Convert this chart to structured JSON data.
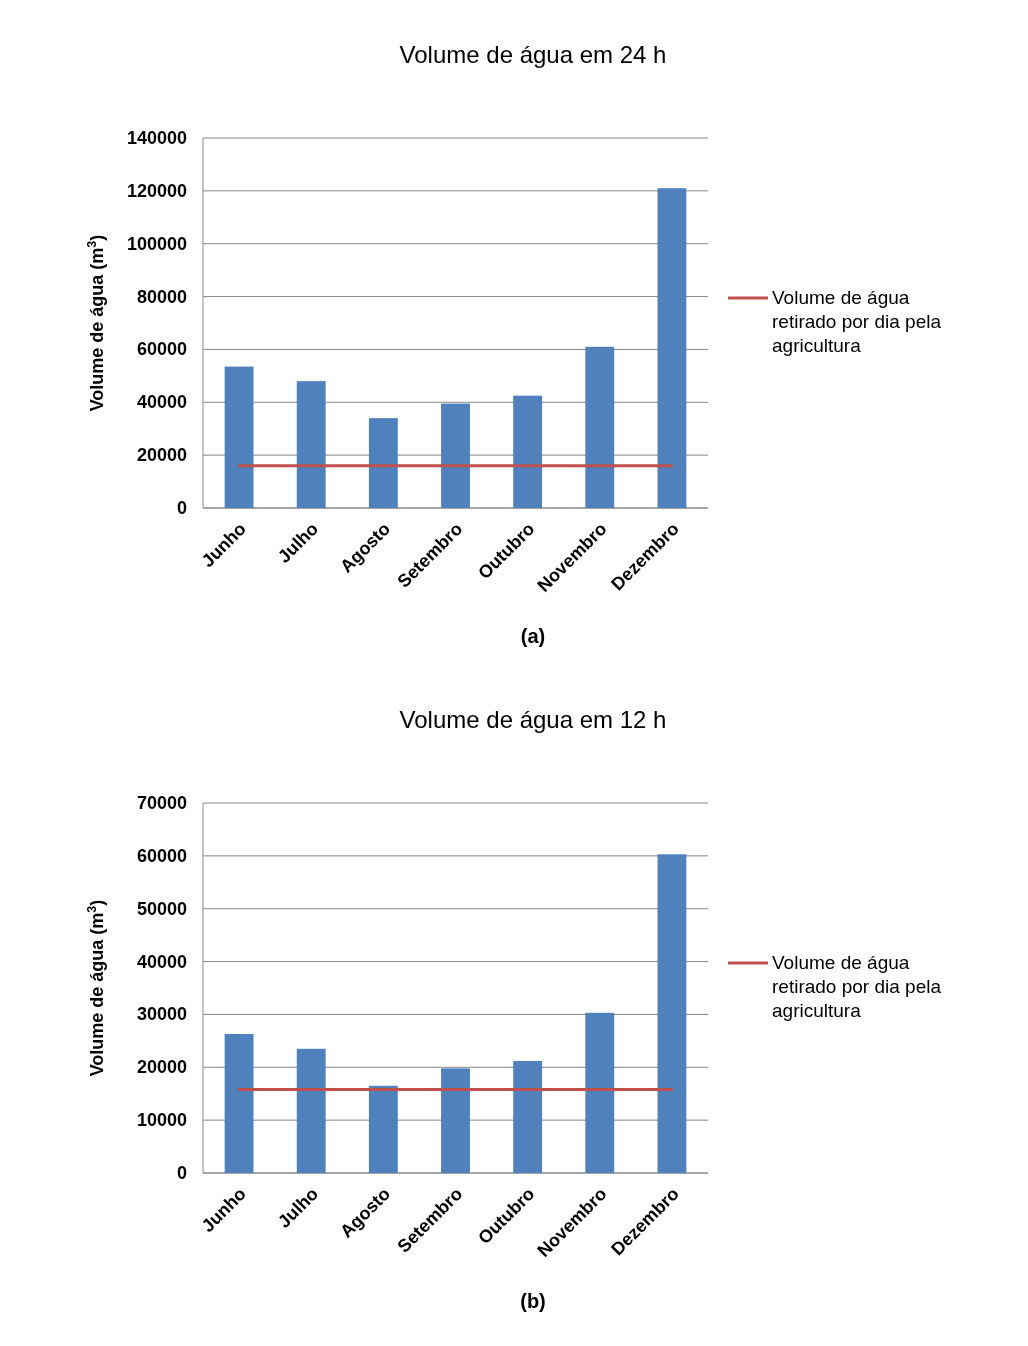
{
  "chart_data": [
    {
      "type": "bar",
      "title": "Volume de água em 24 h",
      "ylabel": "Volume de água (m$^{3}$)",
      "categories": [
        "Junho",
        "Julho",
        "Agosto",
        "Setembro",
        "Outubro",
        "Novembro",
        "Dezembro"
      ],
      "series": [
        {
          "color": "#4f81bd",
          "values": [
            53500,
            48000,
            34000,
            39500,
            42500,
            61000,
            121000
          ]
        },
        {
          "type": "line",
          "name": "Volume de água retirado por dia pela agricultura",
          "color": "#c0504d",
          "values": [
            16000,
            16000,
            16000,
            16000,
            16000,
            16000,
            16000
          ]
        }
      ],
      "ylim": [
        0,
        140000
      ],
      "yticks": [
        0,
        20000,
        40000,
        60000,
        80000,
        100000,
        120000,
        140000
      ],
      "grid": "y",
      "legend": "right",
      "annotations": [
        "(a)"
      ]
    },
    {
      "type": "bar",
      "title": "Volume de água em 12 h",
      "ylabel": "Volume de água (m$^{3}$)",
      "categories": [
        "Junho",
        "Julho",
        "Agosto",
        "Setembro",
        "Outubro",
        "Novembro",
        "Dezembro"
      ],
      "series": [
        {
          "color": "#4f81bd",
          "values": [
            26300,
            23500,
            16500,
            19800,
            21200,
            30300,
            60300
          ]
        },
        {
          "type": "line",
          "name": "Volume de água retirado por dia pela agricultura",
          "color": "#c0504d",
          "values": [
            15800,
            15800,
            15800,
            15800,
            15800,
            15800,
            15800
          ]
        }
      ],
      "ylim": [
        0,
        70000
      ],
      "yticks": [
        0,
        10000,
        20000,
        30000,
        40000,
        50000,
        60000,
        70000
      ],
      "grid": "y",
      "legend": "right",
      "annotations": [
        "(b)"
      ]
    }
  ]
}
